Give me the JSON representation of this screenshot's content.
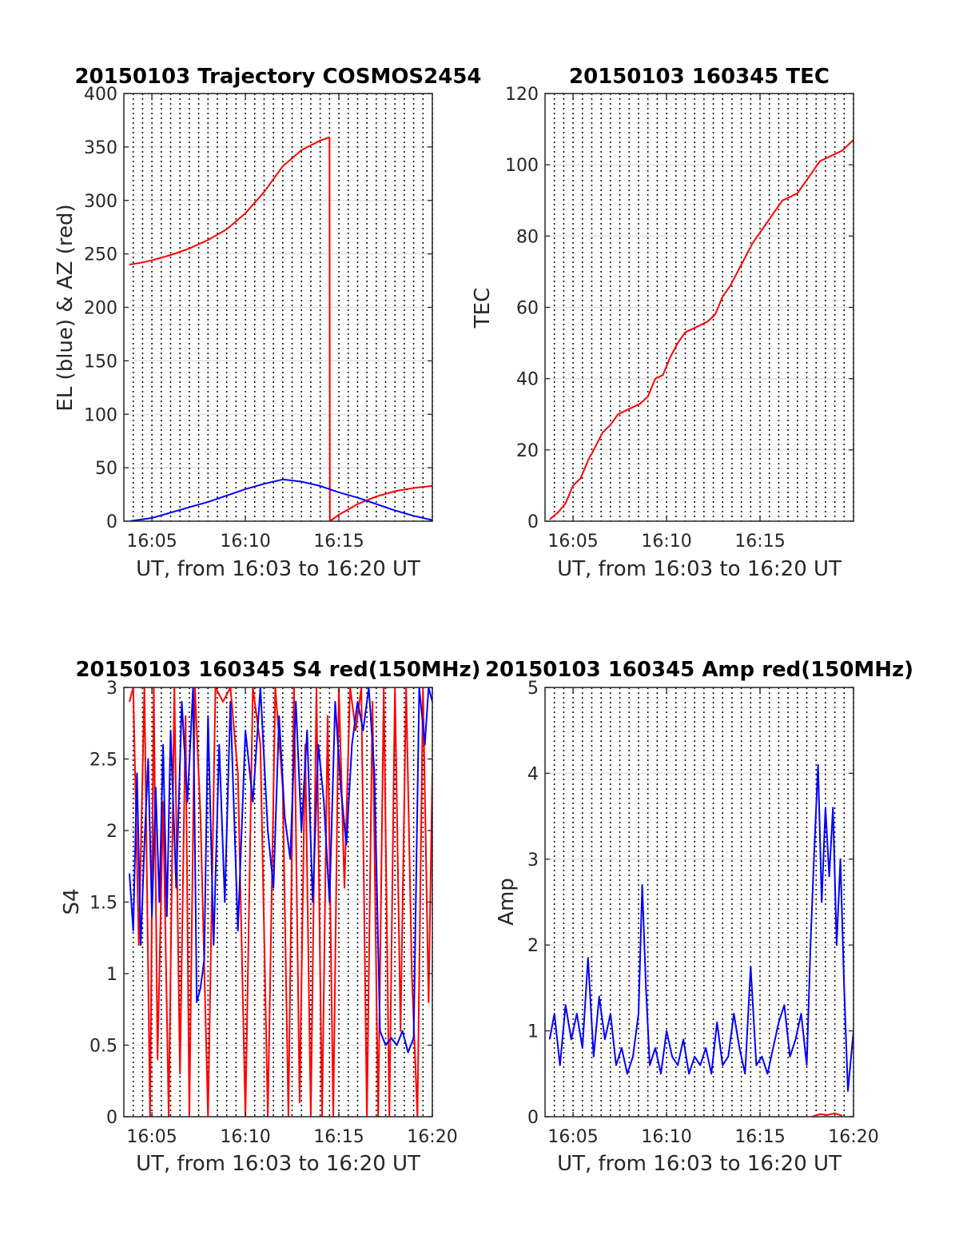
{
  "chart_data": [
    {
      "type": "line",
      "title": "20150103 Trajectory COSMOS2454",
      "xlabel": "UT, from 16:03 to 16:20 UT",
      "ylabel": "EL (blue) & AZ (red)",
      "xlim": [
        3.5,
        20
      ],
      "ylim": [
        0,
        400
      ],
      "x_ticks": [
        5,
        10,
        15
      ],
      "x_tick_labels": [
        "16:05",
        "16:10",
        "16:15"
      ],
      "y_ticks": [
        0,
        50,
        100,
        150,
        200,
        250,
        300,
        350,
        400
      ],
      "y_tick_labels": [
        "0",
        "50",
        "100",
        "150",
        "200",
        "250",
        "300",
        "350",
        "400"
      ],
      "grid": "horizontal solid, vertical dotted every 30 s",
      "series": [
        {
          "color": "#ff0000",
          "x": [
            3.8,
            4.5,
            5,
            6,
            7,
            8,
            9,
            10,
            11,
            12,
            13,
            14,
            14.5,
            14.52,
            15,
            16,
            17,
            18,
            19,
            20
          ],
          "y": [
            240,
            242,
            244,
            249,
            255,
            263,
            273,
            288,
            308,
            332,
            347,
            356,
            359,
            0,
            6,
            16,
            23,
            28,
            31,
            33
          ]
        },
        {
          "color": "#0000ff",
          "x": [
            3.8,
            5,
            6,
            7,
            8,
            9,
            10,
            11,
            12,
            13,
            14,
            15,
            16,
            17,
            18,
            19,
            20
          ],
          "y": [
            0,
            3,
            8,
            13,
            18,
            24,
            30,
            35,
            39,
            37,
            33,
            27,
            22,
            16,
            10,
            5,
            1
          ]
        }
      ]
    },
    {
      "type": "line",
      "title": "20150103 160345 TEC",
      "xlabel": "UT, from 16:03 to 16:20 UT",
      "ylabel": "TEC",
      "xlim": [
        3.5,
        20
      ],
      "ylim": [
        0,
        120
      ],
      "x_ticks": [
        5,
        10,
        15
      ],
      "x_tick_labels": [
        "16:05",
        "16:10",
        "16:15"
      ],
      "y_ticks": [
        0,
        20,
        40,
        60,
        80,
        100,
        120
      ],
      "y_tick_labels": [
        "0",
        "20",
        "40",
        "60",
        "80",
        "100",
        "120"
      ],
      "series": [
        {
          "color": "#ff0000",
          "x": [
            3.75,
            4.2,
            4.6,
            5.0,
            5.4,
            5.8,
            6.2,
            6.6,
            7.0,
            7.4,
            7.8,
            8.2,
            8.6,
            9.0,
            9.4,
            9.8,
            10.2,
            10.6,
            11.0,
            11.4,
            11.8,
            12.2,
            12.6,
            13.0,
            13.4,
            13.8,
            14.2,
            14.6,
            15.0,
            15.4,
            15.8,
            16.2,
            16.6,
            17.0,
            17.4,
            17.8,
            18.2,
            18.6,
            19.0,
            19.4,
            19.8,
            20.0
          ],
          "y": [
            0.5,
            2.5,
            5,
            10,
            12,
            17,
            21,
            25,
            27,
            30,
            31,
            32,
            33,
            35,
            40,
            41,
            46,
            50,
            53,
            54,
            55,
            56,
            58,
            63,
            66,
            70,
            74,
            78,
            81,
            84,
            87,
            90,
            91,
            92,
            95,
            98,
            101,
            102,
            103,
            104,
            106,
            107
          ]
        }
      ]
    },
    {
      "type": "line",
      "title": "20150103 160345 S4 red(150MHz)",
      "xlabel": "UT, from 16:03 to 16:20 UT",
      "ylabel": "S4",
      "xlim": [
        3.5,
        20
      ],
      "ylim": [
        0,
        3
      ],
      "x_ticks": [
        5,
        10,
        15,
        20
      ],
      "x_tick_labels": [
        "16:05",
        "16:10",
        "16:15",
        "16:20"
      ],
      "y_ticks": [
        0,
        0.5,
        1,
        1.5,
        2,
        2.5,
        3
      ],
      "y_tick_labels": [
        "0",
        "0.5",
        "1",
        "1.5",
        "2",
        "2.5",
        "3"
      ],
      "series": [
        {
          "color": "#ff0000",
          "x": [
            3.8,
            4.0,
            4.3,
            4.6,
            4.9,
            5.1,
            5.3,
            5.6,
            5.9,
            6.2,
            6.5,
            6.8,
            7.0,
            7.3,
            7.6,
            8.0,
            8.4,
            8.8,
            9.2,
            9.6,
            10.0,
            10.4,
            10.8,
            11.2,
            11.6,
            12.0,
            12.3,
            12.6,
            12.9,
            13.2,
            13.5,
            13.8,
            14.1,
            14.4,
            14.7,
            15.0,
            15.3,
            15.6,
            15.9,
            16.2,
            16.5,
            16.8,
            17.1,
            17.4,
            17.7,
            18.0,
            18.3,
            18.6,
            18.9,
            19.2,
            19.5,
            19.8,
            20.0
          ],
          "y": [
            2.9,
            3.0,
            1.2,
            3.0,
            0,
            3.0,
            0.4,
            2.2,
            0,
            3.0,
            0.3,
            2.8,
            0,
            3.0,
            2.1,
            0,
            3.0,
            2.9,
            3.0,
            2.4,
            0,
            3.0,
            2.6,
            0,
            3.0,
            2.3,
            0,
            3.0,
            0.1,
            2.6,
            0,
            3.0,
            0,
            2.8,
            0,
            3.0,
            1.6,
            3.0,
            2.7,
            3.0,
            0,
            2.9,
            0,
            3.0,
            0,
            3.0,
            0.6,
            3.0,
            1.0,
            0,
            3.0,
            0.8,
            2.4
          ]
        },
        {
          "color": "#0000ff",
          "x": [
            3.8,
            4.0,
            4.2,
            4.4,
            4.6,
            4.8,
            5.0,
            5.2,
            5.4,
            5.6,
            5.8,
            6.0,
            6.3,
            6.6,
            6.9,
            7.2,
            7.4,
            7.6,
            7.8,
            8.0,
            8.3,
            8.6,
            8.9,
            9.2,
            9.6,
            10.0,
            10.4,
            10.8,
            11.2,
            11.5,
            11.8,
            12.1,
            12.4,
            12.7,
            13.0,
            13.3,
            13.6,
            13.9,
            14.2,
            14.5,
            14.8,
            15.1,
            15.4,
            15.7,
            16.0,
            16.3,
            16.6,
            16.9,
            17.2,
            17.5,
            17.8,
            18.1,
            18.4,
            18.7,
            19.0,
            19.3,
            19.6,
            19.8,
            20.0
          ],
          "y": [
            1.7,
            1.3,
            2.4,
            1.2,
            1.9,
            2.5,
            1.4,
            2.3,
            1.5,
            2.6,
            1.4,
            2.7,
            1.6,
            2.9,
            2.2,
            3.0,
            0.8,
            0.9,
            1.1,
            2.8,
            1.2,
            2.6,
            1.5,
            2.9,
            1.3,
            2.7,
            2.2,
            3.0,
            2.0,
            1.6,
            2.8,
            2.1,
            1.8,
            2.9,
            2.0,
            2.7,
            1.5,
            2.6,
            2.2,
            1.5,
            2.9,
            2.3,
            1.9,
            2.6,
            2.9,
            2.7,
            3.0,
            2.4,
            0.6,
            0.5,
            0.55,
            0.5,
            0.6,
            0.45,
            0.55,
            3.0,
            2.6,
            3.0,
            2.9
          ]
        }
      ]
    },
    {
      "type": "line",
      "title": "20150103 160345 Amp red(150MHz)",
      "xlabel": "UT, from 16:03 to 16:20 UT",
      "ylabel": "Amp",
      "xlim": [
        3.5,
        20
      ],
      "ylim": [
        0,
        5
      ],
      "x_ticks": [
        5,
        10,
        15,
        20
      ],
      "x_tick_labels": [
        "16:05",
        "16:10",
        "16:15",
        "16:20"
      ],
      "y_ticks": [
        0,
        1,
        2,
        3,
        4,
        5
      ],
      "y_tick_labels": [
        "0",
        "1",
        "2",
        "3",
        "4",
        "5"
      ],
      "series": [
        {
          "color": "#0000ff",
          "x": [
            3.75,
            4.0,
            4.3,
            4.6,
            4.9,
            5.2,
            5.5,
            5.8,
            6.1,
            6.4,
            6.7,
            7.0,
            7.3,
            7.6,
            7.9,
            8.2,
            8.5,
            8.7,
            8.9,
            9.1,
            9.4,
            9.7,
            10.0,
            10.3,
            10.6,
            10.9,
            11.2,
            11.5,
            11.8,
            12.1,
            12.4,
            12.7,
            13.0,
            13.3,
            13.6,
            13.9,
            14.2,
            14.5,
            14.8,
            15.1,
            15.4,
            15.7,
            16.0,
            16.3,
            16.6,
            16.9,
            17.2,
            17.5,
            17.7,
            17.9,
            18.1,
            18.3,
            18.5,
            18.7,
            18.9,
            19.1,
            19.3,
            19.5,
            19.7,
            20.0
          ],
          "y": [
            0.9,
            1.2,
            0.6,
            1.3,
            0.9,
            1.2,
            0.8,
            1.85,
            0.7,
            1.4,
            0.9,
            1.2,
            0.6,
            0.8,
            0.5,
            0.7,
            1.2,
            2.7,
            1.5,
            0.6,
            0.8,
            0.5,
            1.0,
            0.7,
            0.6,
            0.9,
            0.5,
            0.7,
            0.6,
            0.8,
            0.5,
            1.1,
            0.6,
            0.7,
            1.2,
            0.8,
            0.5,
            1.75,
            0.6,
            0.7,
            0.5,
            0.8,
            1.1,
            1.3,
            0.7,
            0.9,
            1.2,
            0.6,
            2.0,
            3.1,
            4.1,
            2.5,
            3.6,
            2.8,
            3.6,
            2.0,
            3.0,
            1.5,
            0.3,
            1.0
          ]
        },
        {
          "color": "#ff0000",
          "x": [
            17.8,
            18.2,
            18.6,
            19.0,
            19.4
          ],
          "y": [
            0.0,
            0.03,
            0.02,
            0.04,
            0.01
          ]
        }
      ]
    }
  ]
}
